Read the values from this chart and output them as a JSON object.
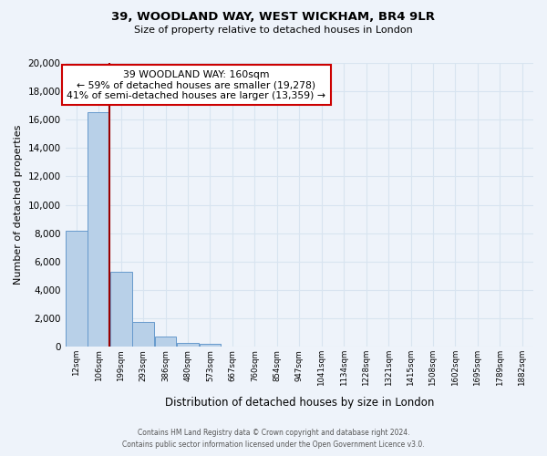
{
  "title": "39, WOODLAND WAY, WEST WICKHAM, BR4 9LR",
  "subtitle": "Size of property relative to detached houses in London",
  "xlabel": "Distribution of detached houses by size in London",
  "ylabel": "Number of detached properties",
  "bin_labels": [
    "12sqm",
    "106sqm",
    "199sqm",
    "293sqm",
    "386sqm",
    "480sqm",
    "573sqm",
    "667sqm",
    "760sqm",
    "854sqm",
    "947sqm",
    "1041sqm",
    "1134sqm",
    "1228sqm",
    "1321sqm",
    "1415sqm",
    "1508sqm",
    "1602sqm",
    "1695sqm",
    "1789sqm",
    "1882sqm"
  ],
  "bar_values": [
    8200,
    16500,
    5300,
    1750,
    750,
    250,
    200,
    0,
    0,
    0,
    0,
    0,
    0,
    0,
    0,
    0,
    0,
    0,
    0,
    0,
    0
  ],
  "bar_color": "#b8d0e8",
  "bar_edge_color": "#6699cc",
  "background_color": "#eef3fa",
  "grid_color": "#d8e4f0",
  "property_line_color": "#990000",
  "property_line_bin": 1,
  "annotation_line1": "39 WOODLAND WAY: 160sqm",
  "annotation_line2": "← 59% of detached houses are smaller (19,278)",
  "annotation_line3": "41% of semi-detached houses are larger (13,359) →",
  "annotation_box_color": "#ffffff",
  "annotation_box_edge": "#cc0000",
  "ylim": [
    0,
    20000
  ],
  "yticks": [
    0,
    2000,
    4000,
    6000,
    8000,
    10000,
    12000,
    14000,
    16000,
    18000,
    20000
  ],
  "footer_line1": "Contains HM Land Registry data © Crown copyright and database right 2024.",
  "footer_line2": "Contains public sector information licensed under the Open Government Licence v3.0."
}
